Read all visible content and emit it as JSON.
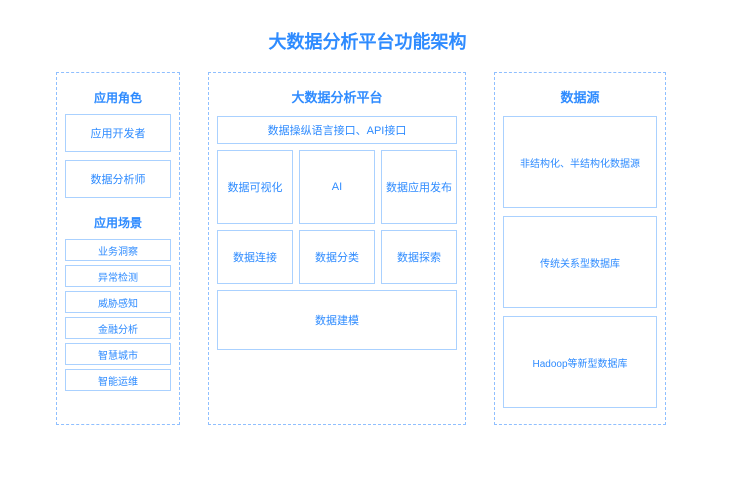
{
  "colors": {
    "primary": "#2e8bff",
    "border": "#aad1ff",
    "dashed": "#8fbfff",
    "bg": "#ffffff"
  },
  "title": "大数据分析平台功能架构",
  "left": {
    "roles_title": "应用角色",
    "roles": [
      "应用开发者",
      "数据分析师"
    ],
    "scenes_title": "应用场景",
    "scenes": [
      "业务洞察",
      "异常检测",
      "威胁感知",
      "金融分析",
      "智慧城市",
      "智能运维"
    ]
  },
  "center": {
    "title": "大数据分析平台",
    "api": "数据操纵语言接口、API接口",
    "row_a": [
      "数据可视化",
      "AI",
      "数据应用发布"
    ],
    "row_b": [
      "数据连接",
      "数据分类",
      "数据探索"
    ],
    "model": "数据建模"
  },
  "right": {
    "title": "数据源",
    "sources": [
      "非结构化、半结构化数据源",
      "传统关系型数据库",
      "Hadoop等新型数据库"
    ]
  }
}
